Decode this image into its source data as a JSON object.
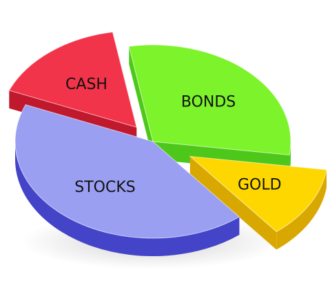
{
  "chart_data": {
    "type": "pie",
    "style": "3d-exploded",
    "title": "",
    "categories": [
      "BONDS",
      "GOLD",
      "STOCKS",
      "CASH"
    ],
    "values": [
      30,
      12,
      42,
      16
    ],
    "exploded": [
      false,
      true,
      false,
      true
    ],
    "legend": "none",
    "colors": {
      "BONDS": {
        "top": "#7CF32A",
        "side": "#4DC81A"
      },
      "GOLD": {
        "top": "#FFD700",
        "side": "#D9A800"
      },
      "STOCKS": {
        "top": "#9B9FF2",
        "side": "#4444C8"
      },
      "CASH": {
        "top": "#F2344A",
        "side": "#C0182C"
      }
    }
  }
}
